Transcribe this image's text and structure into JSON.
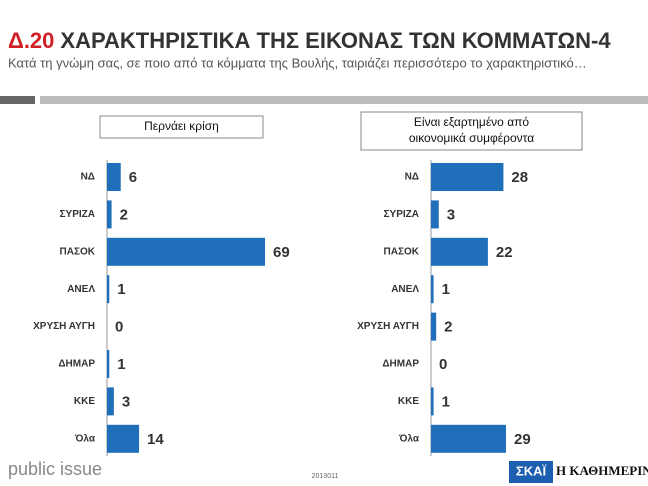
{
  "header": {
    "code": "Δ.20",
    "title": "ΧΑΡΑΚΤΗΡΙΣΤΙΚΑ ΤΗΣ ΕΙΚΟΝΑΣ ΤΩΝ ΚΟΜΜΑΤΩΝ-4",
    "subtitle": "Κατά τη γνώμη σας, σε ποιο από τα κόμματα της Βουλής, ταιριάζει περισσότερο το χαρακτηριστικό…"
  },
  "chart_data": [
    {
      "type": "bar",
      "orientation": "horizontal",
      "title": "Περνάει κρίση",
      "categories": [
        "ΝΔ",
        "ΣΥΡΙΖΑ",
        "ΠΑΣΟΚ",
        "ΑΝΕΛ",
        "ΧΡΥΣΗ ΑΥΓΗ",
        "ΔΗΜΑΡ",
        "ΚΚΕ",
        "Όλα"
      ],
      "values": [
        6,
        2,
        69,
        1,
        0,
        1,
        3,
        14
      ],
      "color": "#1f6fba"
    },
    {
      "type": "bar",
      "orientation": "horizontal",
      "title": "Είναι εξαρτημένο από οικονομικά συμφέροντα",
      "categories": [
        "ΝΔ",
        "ΣΥΡΙΖΑ",
        "ΠΑΣΟΚ",
        "ΑΝΕΛ",
        "ΧΡΥΣΗ ΑΥΓΗ",
        "ΔΗΜΑΡ",
        "ΚΚΕ",
        "Όλα"
      ],
      "values": [
        28,
        3,
        22,
        1,
        2,
        0,
        1,
        29
      ],
      "color": "#1f6fba"
    }
  ],
  "footer": {
    "brand": "public issue",
    "code": "2013011",
    "logo1": "ΣΚΑΪ",
    "logo2": "Η ΚΑΘΗΜΕΡΙΝΗ"
  }
}
